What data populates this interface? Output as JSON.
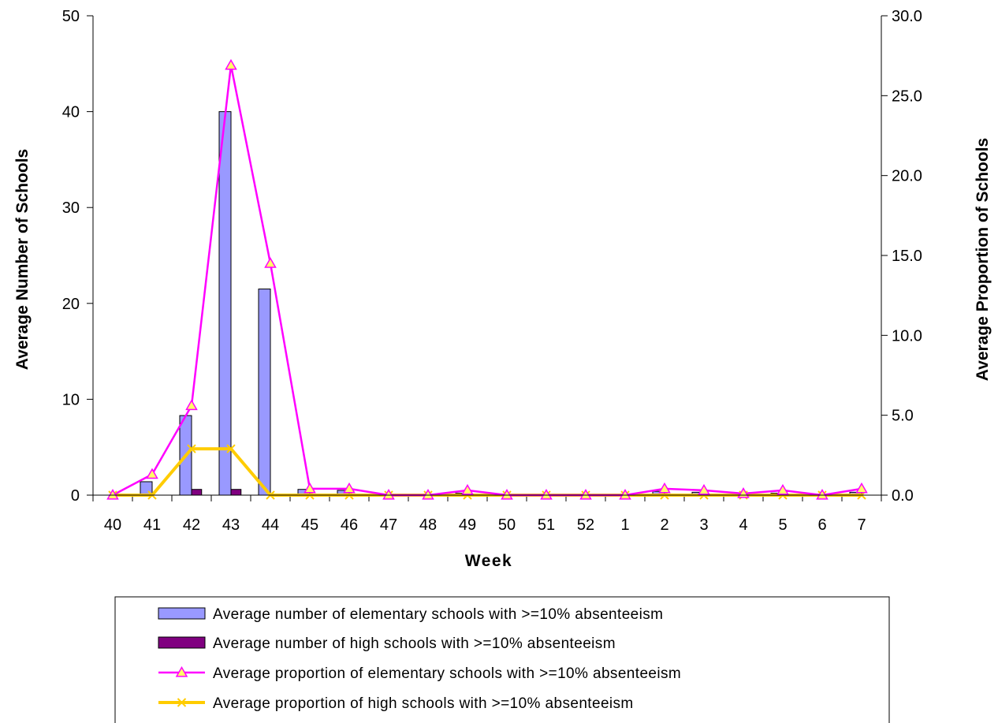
{
  "chart_data": {
    "type": "bar",
    "xlabel": "Week",
    "ylabel_left": "Average Number of Schools",
    "ylabel_right": "Average Proportion of Schools",
    "ylim_left": [
      0,
      50
    ],
    "ylim_right": [
      0,
      30
    ],
    "yticks_left": [
      "0",
      "10",
      "20",
      "30",
      "40",
      "50"
    ],
    "yticks_right": [
      "0.0",
      "5.0",
      "10.0",
      "15.0",
      "20.0",
      "25.0",
      "30.0"
    ],
    "categories": [
      "40",
      "41",
      "42",
      "43",
      "44",
      "45",
      "46",
      "47",
      "48",
      "49",
      "50",
      "51",
      "52",
      "1",
      "2",
      "3",
      "4",
      "5",
      "6",
      "7"
    ],
    "grid": false,
    "legend_placement": "bottom",
    "colors": {
      "elem_bar": "#9999ff",
      "high_bar": "#800080",
      "elem_line": "#ff00ff",
      "high_line": "#ffcc00"
    },
    "series": [
      {
        "name": "Average number of elementary schools with >=10% absenteeism",
        "kind": "bar",
        "axis": "left",
        "values": [
          0,
          1.4,
          8.3,
          40,
          21.5,
          0.6,
          0.5,
          0,
          0,
          0.2,
          0,
          0,
          0,
          0,
          0.4,
          0.3,
          0.1,
          0.2,
          0,
          0.3
        ]
      },
      {
        "name": "Average number of high schools with >=10% absenteeism",
        "kind": "bar",
        "axis": "left",
        "values": [
          0,
          0,
          0.6,
          0.6,
          0,
          0,
          0,
          0,
          0,
          0,
          0,
          0,
          0,
          0,
          0,
          0,
          0,
          0,
          0,
          0
        ]
      },
      {
        "name": "Average proportion of elementary schools with >=10% absenteeism",
        "kind": "line",
        "marker": "triangle",
        "axis": "right",
        "values": [
          0,
          1.3,
          5.6,
          26.9,
          14.5,
          0.4,
          0.4,
          0,
          0,
          0.3,
          0,
          0,
          0,
          0,
          0.4,
          0.3,
          0.1,
          0.3,
          0,
          0.4
        ]
      },
      {
        "name": "Average proportion of high schools with >=10% absenteeism",
        "kind": "line",
        "marker": "x",
        "axis": "right",
        "values": [
          0,
          0,
          2.9,
          2.9,
          0,
          0,
          0,
          0,
          0,
          0,
          0,
          0,
          0,
          0,
          0,
          0,
          0,
          0,
          0,
          0
        ]
      }
    ]
  }
}
